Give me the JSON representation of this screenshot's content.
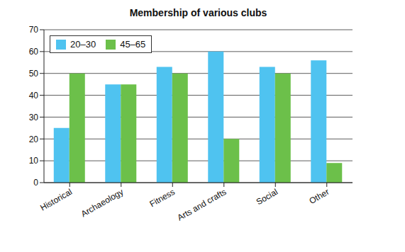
{
  "chart_data": {
    "type": "bar",
    "title": "Membership of various clubs",
    "categories": [
      "Historical",
      "Archaeology",
      "Fitness",
      "Arts and crafts",
      "Social",
      "Other"
    ],
    "series": [
      {
        "name": "20–30",
        "color": "#4fc3f0",
        "values": [
          25,
          45,
          53,
          60,
          53,
          56
        ]
      },
      {
        "name": "45–65",
        "color": "#6cc04a",
        "values": [
          50,
          45,
          50,
          20,
          50,
          9
        ]
      }
    ],
    "ylim": [
      0,
      70
    ],
    "yticks": [
      0,
      10,
      20,
      30,
      40,
      50,
      60,
      70
    ],
    "grid": true,
    "legend": "top-left"
  }
}
